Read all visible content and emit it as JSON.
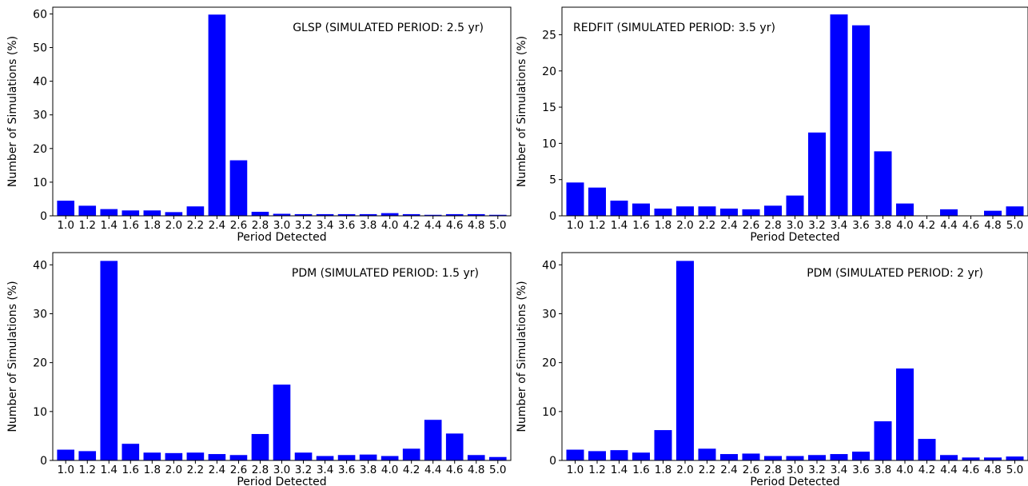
{
  "chart_data": [
    {
      "type": "bar",
      "annotation": "GLSP (SIMULATED PERIOD: 2.5 yr)",
      "xlabel": "Period Detected",
      "ylabel": "Number of Simulations (%)",
      "categories": [
        "1.0",
        "1.2",
        "1.4",
        "1.6",
        "1.8",
        "2.0",
        "2.2",
        "2.4",
        "2.6",
        "2.8",
        "3.0",
        "3.2",
        "3.4",
        "3.6",
        "3.8",
        "4.0",
        "4.2",
        "4.4",
        "4.6",
        "4.8",
        "5.0"
      ],
      "values": [
        4.5,
        3.0,
        2.0,
        1.6,
        1.6,
        1.1,
        2.8,
        59.8,
        16.5,
        1.2,
        0.6,
        0.5,
        0.5,
        0.5,
        0.5,
        0.8,
        0.5,
        0.3,
        0.5,
        0.5,
        0.3
      ],
      "ylim": [
        0,
        62
      ],
      "yticks": [
        0,
        10,
        20,
        30,
        40,
        50,
        60
      ],
      "color": "#0000ff"
    },
    {
      "type": "bar",
      "annotation": "REDFIT (SIMULATED PERIOD: 3.5 yr)",
      "xlabel": "Period Detected",
      "ylabel": "Number of Simulations (%)",
      "categories": [
        "1.0",
        "1.2",
        "1.4",
        "1.6",
        "1.8",
        "2.0",
        "2.2",
        "2.4",
        "2.6",
        "2.8",
        "3.0",
        "3.2",
        "3.4",
        "3.6",
        "3.8",
        "4.0",
        "4.2",
        "4.4",
        "4.6",
        "4.8",
        "5.0"
      ],
      "values": [
        4.6,
        3.9,
        2.1,
        1.7,
        1.0,
        1.3,
        1.3,
        1.0,
        0.9,
        1.4,
        2.8,
        11.5,
        27.8,
        26.3,
        8.9,
        1.7,
        0.0,
        0.9,
        0.0,
        0.7,
        1.3
      ],
      "ylim": [
        0,
        28.8
      ],
      "yticks": [
        0,
        5,
        10,
        15,
        20,
        25
      ],
      "color": "#0000ff"
    },
    {
      "type": "bar",
      "annotation": "PDM (SIMULATED PERIOD: 1.5 yr)",
      "xlabel": "Period Detected",
      "ylabel": "Number of Simulations (%)",
      "categories": [
        "1.0",
        "1.2",
        "1.4",
        "1.6",
        "1.8",
        "2.0",
        "2.2",
        "2.4",
        "2.6",
        "2.8",
        "3.0",
        "3.2",
        "3.4",
        "3.6",
        "3.8",
        "4.0",
        "4.2",
        "4.4",
        "4.6",
        "4.8",
        "5.0"
      ],
      "values": [
        2.2,
        1.9,
        40.8,
        3.4,
        1.6,
        1.5,
        1.6,
        1.3,
        1.1,
        5.4,
        15.5,
        1.6,
        0.9,
        1.1,
        1.2,
        0.9,
        2.4,
        8.3,
        5.5,
        1.1,
        0.7
      ],
      "ylim": [
        0,
        42.5
      ],
      "yticks": [
        0,
        10,
        20,
        30,
        40
      ],
      "color": "#0000ff"
    },
    {
      "type": "bar",
      "annotation": "PDM (SIMULATED PERIOD: 2 yr)",
      "xlabel": "Period Detected",
      "ylabel": "Number of Simulations (%)",
      "categories": [
        "1.0",
        "1.2",
        "1.4",
        "1.6",
        "1.8",
        "2.0",
        "2.2",
        "2.4",
        "2.6",
        "2.8",
        "3.0",
        "3.2",
        "3.4",
        "3.6",
        "3.8",
        "4.0",
        "4.2",
        "4.4",
        "4.6",
        "4.8",
        "5.0"
      ],
      "values": [
        2.2,
        1.9,
        2.1,
        1.6,
        6.2,
        40.8,
        2.4,
        1.3,
        1.4,
        0.9,
        0.9,
        1.1,
        1.3,
        1.8,
        8.0,
        18.8,
        4.4,
        1.1,
        0.6,
        0.6,
        0.8
      ],
      "ylim": [
        0,
        42.5
      ],
      "yticks": [
        0,
        10,
        20,
        30,
        40
      ],
      "color": "#0000ff"
    }
  ]
}
